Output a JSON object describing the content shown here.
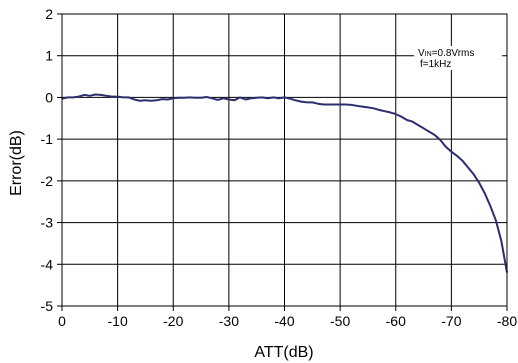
{
  "chart_data": {
    "type": "line",
    "title": "",
    "xlabel": "ATT(dB)",
    "ylabel": "Error(dB)",
    "xlim": [
      0,
      -80
    ],
    "ylim": [
      -5,
      2
    ],
    "x_ticks": [
      0,
      -10,
      -20,
      -30,
      -40,
      -50,
      -60,
      -70,
      -80
    ],
    "x_tick_labels": [
      "0",
      "-10",
      "-20",
      "-30",
      "-40",
      "-50",
      "-60",
      "-70",
      "-80"
    ],
    "y_ticks": [
      2,
      1,
      0,
      -1,
      -2,
      -3,
      -4,
      -5
    ],
    "y_tick_labels": [
      "2",
      "1",
      "0",
      "-1",
      "-2",
      "-3",
      "-4",
      "-5"
    ],
    "grid": true,
    "legend": "none",
    "annotation": {
      "line1_prefix": "V",
      "line1_subscript": "IN",
      "line1_suffix": "=0.8Vrms",
      "line2": "f=1kHz",
      "placement": "top-right"
    },
    "series": [
      {
        "color": "#2e2e6e",
        "x": [
          0,
          -1,
          -2,
          -3,
          -4,
          -5,
          -6,
          -7,
          -8,
          -9,
          -10,
          -11,
          -12,
          -13,
          -14,
          -15,
          -16,
          -17,
          -18,
          -19,
          -20,
          -21,
          -22,
          -23,
          -24,
          -25,
          -26,
          -27,
          -28,
          -29,
          -30,
          -31,
          -32,
          -33,
          -34,
          -35,
          -36,
          -37,
          -38,
          -39,
          -40,
          -41,
          -42,
          -43,
          -44,
          -45,
          -46,
          -47,
          -48,
          -49,
          -50,
          -51,
          -52,
          -53,
          -54,
          -55,
          -56,
          -57,
          -58,
          -59,
          -60,
          -61,
          -62,
          -63,
          -64,
          -65,
          -66,
          -67,
          -68,
          -69,
          -70,
          -71,
          -72,
          -73,
          -74,
          -75,
          -76,
          -77,
          -78,
          -79,
          -80
        ],
        "y": [
          -0.03,
          0.0,
          0.0,
          0.02,
          0.06,
          0.04,
          0.07,
          0.06,
          0.04,
          0.02,
          0.02,
          0.0,
          0.0,
          -0.05,
          -0.08,
          -0.07,
          -0.08,
          -0.07,
          -0.04,
          -0.05,
          -0.02,
          -0.01,
          -0.01,
          0.0,
          -0.01,
          -0.01,
          0.01,
          -0.02,
          -0.06,
          -0.02,
          -0.05,
          -0.07,
          0.0,
          -0.05,
          -0.02,
          -0.01,
          0.0,
          -0.02,
          0.0,
          -0.02,
          0.0,
          -0.03,
          -0.07,
          -0.1,
          -0.12,
          -0.12,
          -0.15,
          -0.17,
          -0.17,
          -0.17,
          -0.17,
          -0.17,
          -0.18,
          -0.2,
          -0.22,
          -0.24,
          -0.26,
          -0.3,
          -0.33,
          -0.36,
          -0.4,
          -0.46,
          -0.54,
          -0.58,
          -0.66,
          -0.74,
          -0.82,
          -0.9,
          -1.02,
          -1.18,
          -1.3,
          -1.4,
          -1.52,
          -1.68,
          -1.84,
          -2.05,
          -2.3,
          -2.6,
          -2.95,
          -3.45,
          -4.2
        ]
      }
    ]
  }
}
